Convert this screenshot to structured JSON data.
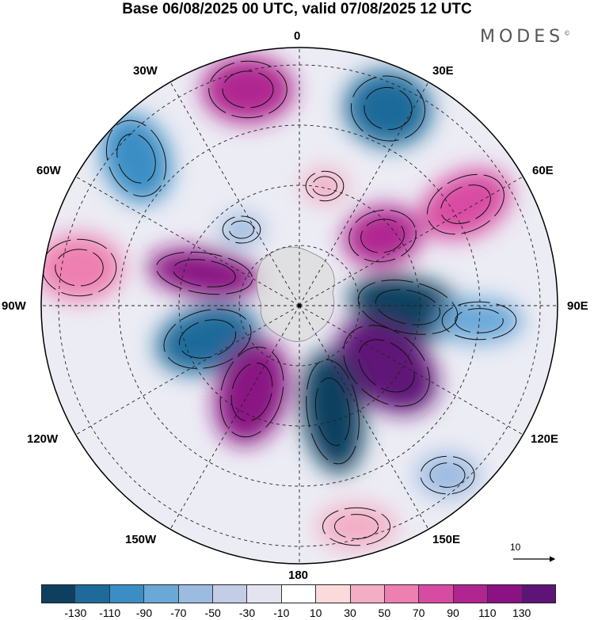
{
  "title": "Base 06/08/2025 00 UTC, valid 07/08/2025 12 UTC",
  "brand": "MODES",
  "brand_mark": "©",
  "longitude_labels": {
    "lon_0": "0",
    "lon_30e": "30E",
    "lon_60e": "60E",
    "lon_90e": "90E",
    "lon_120e": "120E",
    "lon_150e": "150E",
    "lon_180": "180",
    "lon_150w": "150W",
    "lon_120w": "120W",
    "lon_90w": "90W",
    "lon_60w": "60W",
    "lon_30w": "30W"
  },
  "reference_vector": {
    "label": "10"
  },
  "colorbar": {
    "colors": [
      "#0e3f5e",
      "#1e6a9a",
      "#3b8ec4",
      "#6aa8d8",
      "#9cbbe0",
      "#c3cde6",
      "#e4e4f1",
      "#ffffff",
      "#fadadb",
      "#f3adc4",
      "#ee7fb0",
      "#d84ba2",
      "#b02590",
      "#8a1283",
      "#5e1477"
    ],
    "ticks": [
      "-130",
      "-110",
      "-90",
      "-70",
      "-50",
      "-30",
      "-10",
      "10",
      "30",
      "50",
      "70",
      "90",
      "110",
      "130"
    ]
  },
  "anomalies": [
    {
      "value": 110,
      "color": "#b02590"
    },
    {
      "value": -110,
      "color": "#1e6a9a"
    },
    {
      "value": -90,
      "color": "#3b8ec4"
    },
    {
      "value": 90,
      "color": "#d84ba2"
    },
    {
      "value": 110,
      "color": "#b02590"
    },
    {
      "value": 130,
      "color": "#8a1283"
    },
    {
      "value": 70,
      "color": "#ee7fb0"
    },
    {
      "value": -130,
      "color": "#0e3f5e"
    },
    {
      "value": -110,
      "color": "#1e6a9a"
    },
    {
      "value": 130,
      "color": "#5e1477"
    },
    {
      "value": 130,
      "color": "#8a1283"
    },
    {
      "value": -130,
      "color": "#0e3f5e"
    },
    {
      "value": -50,
      "color": "#6aa8d8"
    },
    {
      "value": 50,
      "color": "#f3adc4"
    },
    {
      "value": -30,
      "color": "#9cbbe0"
    },
    {
      "value": -30,
      "color": "#9cbbe0"
    },
    {
      "value": 50,
      "color": "#f3adc4"
    }
  ]
}
